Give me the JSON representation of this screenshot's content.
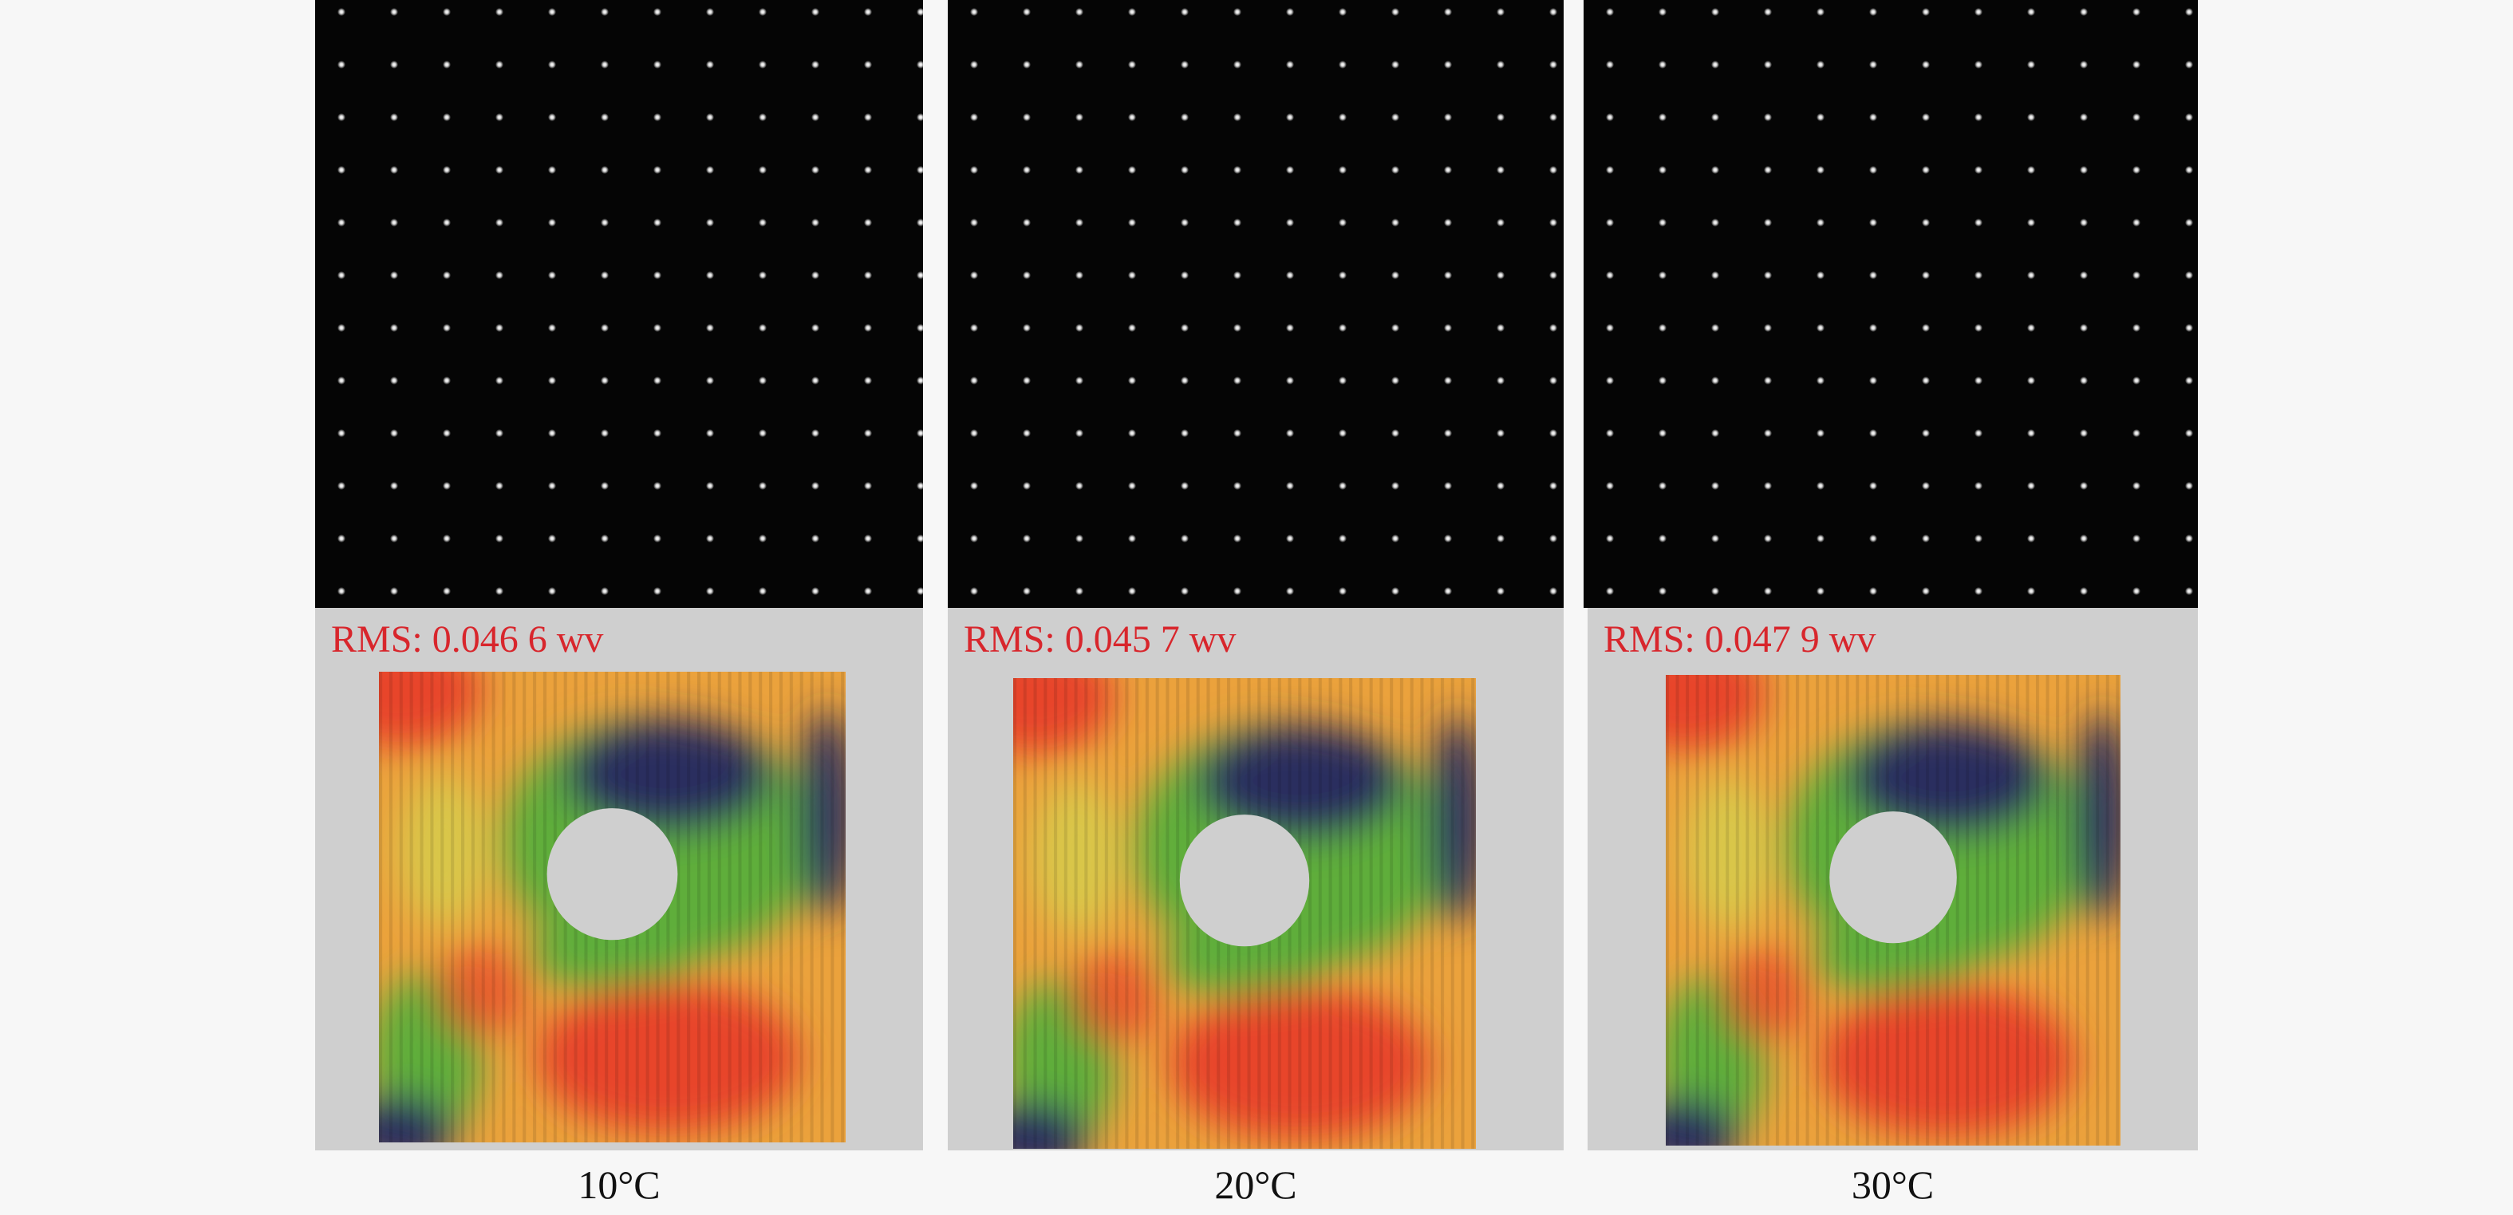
{
  "panels": [
    {
      "rms_label": "RMS:",
      "rms_value": "0.046 6",
      "rms_unit": "wv",
      "caption": "10°C"
    },
    {
      "rms_label": "RMS:",
      "rms_value": "0.045 7",
      "rms_unit": "wv",
      "caption": "20°C"
    },
    {
      "rms_label": "RMS:",
      "rms_value": "0.047 9",
      "rms_unit": "wv",
      "caption": "30°C"
    }
  ],
  "colors": {
    "background": "#f7f7f7",
    "spot_field": "#050505",
    "spot": "#ffffff",
    "map_background": "#cfcfcf",
    "rms_text": "#d8262c",
    "heat_red": "#e8452a",
    "heat_orange": "#eba23c",
    "heat_yellow": "#d9c64a",
    "heat_green": "#5fae3a",
    "heat_dark": "#2b2d5e"
  }
}
